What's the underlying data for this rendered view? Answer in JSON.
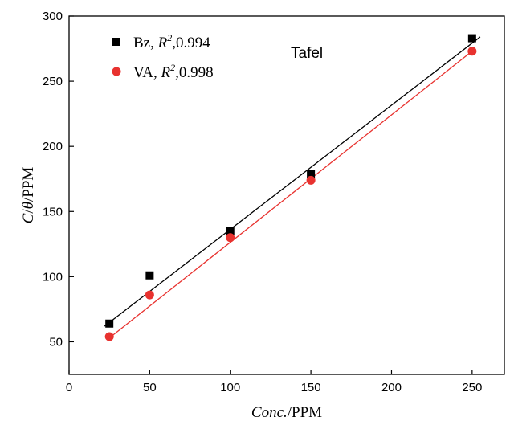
{
  "chart_data": {
    "type": "scatter",
    "title": "",
    "annotation": "Tafel",
    "xlabel": {
      "italic": "Conc.",
      "rest": "/PPM"
    },
    "ylabel": {
      "italic_c": "C",
      "slash": "/",
      "italic_theta": "θ",
      "rest": "/PPM"
    },
    "xlim": [
      0,
      270
    ],
    "ylim": [
      25,
      300
    ],
    "xticks": [
      0,
      50,
      100,
      150,
      200,
      250
    ],
    "yticks": [
      50,
      100,
      150,
      200,
      250,
      300
    ],
    "legend_position": "top-left",
    "series": [
      {
        "name": "Bz",
        "r2_label": "R",
        "r2_sup": "2",
        "r2_value": ",0.994",
        "marker": "square",
        "color": "#000000",
        "x": [
          25,
          50,
          100,
          150,
          250
        ],
        "y": [
          64,
          101,
          135,
          179,
          283
        ],
        "fit_line": {
          "x": [
            22,
            255
          ],
          "y": [
            62,
            284
          ]
        }
      },
      {
        "name": "VA",
        "r2_label": "R",
        "r2_sup": "2",
        "r2_value": ",0.998",
        "marker": "circle",
        "color": "#e8322f",
        "x": [
          25,
          50,
          100,
          150,
          250
        ],
        "y": [
          54,
          86,
          130,
          174,
          273
        ],
        "fit_line": {
          "x": [
            25,
            252
          ],
          "y": [
            53,
            275
          ]
        }
      }
    ]
  }
}
